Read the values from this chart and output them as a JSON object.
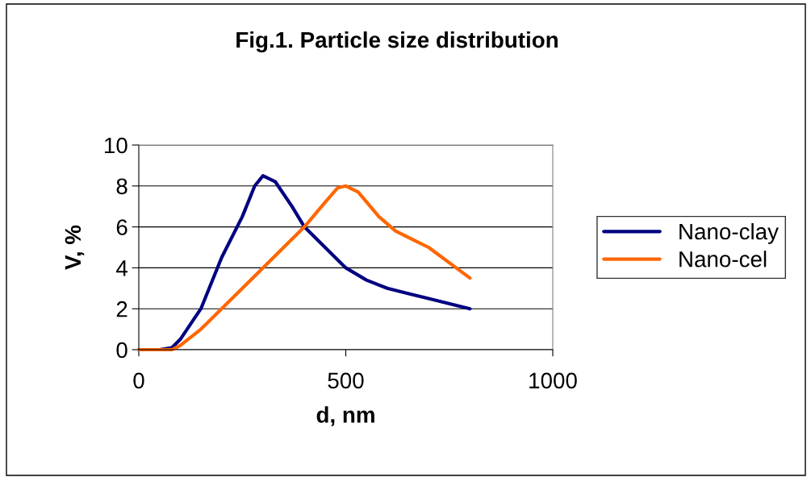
{
  "chart_data": {
    "type": "line",
    "title": "Fig.1. Particle size distribution",
    "xlabel": "d, nm",
    "ylabel": "V, %",
    "xlim": [
      0,
      1000
    ],
    "xticks": [
      0,
      500,
      1000
    ],
    "ylim": [
      0,
      10
    ],
    "yticks": [
      0,
      2,
      4,
      6,
      8,
      10
    ],
    "grid": "y",
    "legend": "right",
    "marker": "none",
    "line_style": "solid",
    "series": [
      {
        "name": "Nano-clay",
        "color": "#000080",
        "x": [
          0,
          50,
          80,
          100,
          150,
          200,
          250,
          280,
          300,
          330,
          370,
          400,
          450,
          500,
          550,
          600,
          700,
          800
        ],
        "values": [
          0,
          0,
          0.1,
          0.5,
          2,
          4.5,
          6.5,
          8,
          8.5,
          8.2,
          7,
          6,
          5,
          4,
          3.4,
          3.0,
          2.5,
          2.0
        ]
      },
      {
        "name": "Nano-cel",
        "color": "#ff6600",
        "x": [
          0,
          80,
          100,
          150,
          200,
          300,
          400,
          450,
          480,
          500,
          530,
          580,
          620,
          700,
          800
        ],
        "values": [
          0,
          0,
          0.2,
          1,
          2,
          4,
          6,
          7.2,
          7.9,
          8,
          7.7,
          6.5,
          5.8,
          5,
          3.5
        ]
      }
    ]
  }
}
